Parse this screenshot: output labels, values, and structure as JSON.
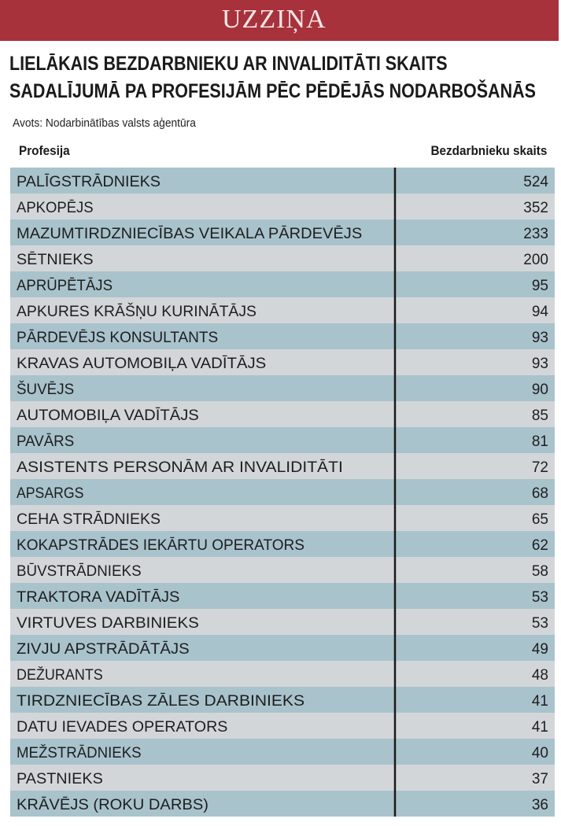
{
  "header": {
    "banner": "UZZIŅA",
    "headline_line1": "LIELĀKAIS BEZDARBNIEKU AR INVALIDITĀTI SKAITS",
    "headline_line2": "SADALĪJUMĀ PA PROFESIJĀM PĒC PĒDĒJĀS NODARBOŠANĀS",
    "source": "Avots: Nodarbinātības valsts aģentūra"
  },
  "colors": {
    "banner": "#a8323c",
    "row_dark": "#a9c3cc",
    "row_light": "#d3d6d9",
    "divider": "#1a1a1a"
  },
  "chart_data": {
    "type": "table",
    "columns": [
      "Profesija",
      "Bezdarbnieku skaits"
    ],
    "rows": [
      [
        "PALĪGSTRĀDNIEKS",
        524
      ],
      [
        "APKOPĒJS",
        352
      ],
      [
        "MAZUMTIRDZNIECĪBAS VEIKALA PĀRDEVĒJS",
        233
      ],
      [
        "SĒTNIEKS",
        200
      ],
      [
        "APRŪPĒTĀJS",
        95
      ],
      [
        "APKURES KRĀŠŅU KURINĀTĀJS",
        94
      ],
      [
        "PĀRDEVĒJS KONSULTANTS",
        93
      ],
      [
        "KRAVAS AUTOMOBIĻA VADĪTĀJS",
        93
      ],
      [
        "ŠUVĒJS",
        90
      ],
      [
        "AUTOMOBIĻA VADĪTĀJS",
        85
      ],
      [
        "PAVĀRS",
        81
      ],
      [
        "ASISTENTS PERSONĀM AR INVALIDITĀTI",
        72
      ],
      [
        "APSARGS",
        68
      ],
      [
        "CEHA STRĀDNIEKS",
        65
      ],
      [
        "KOKAPSTRĀDES IEKĀRTU OPERATORS",
        62
      ],
      [
        "BŪVSTRĀDNIEKS",
        58
      ],
      [
        "TRAKTORA VADĪTĀJS",
        53
      ],
      [
        "VIRTUVES DARBINIEKS",
        53
      ],
      [
        "ZIVJU APSTRĀDĀTĀJS",
        49
      ],
      [
        "DEŽURANTS",
        48
      ],
      [
        "TIRDZNIECĪBAS ZĀLES DARBINIEKS",
        41
      ],
      [
        "DATU IEVADES OPERATORS",
        41
      ],
      [
        "MEŽSTRĀDNIEKS",
        40
      ],
      [
        "PASTNIEKS",
        37
      ],
      [
        "KRĀVĒJS (ROKU DARBS)",
        36
      ]
    ]
  }
}
